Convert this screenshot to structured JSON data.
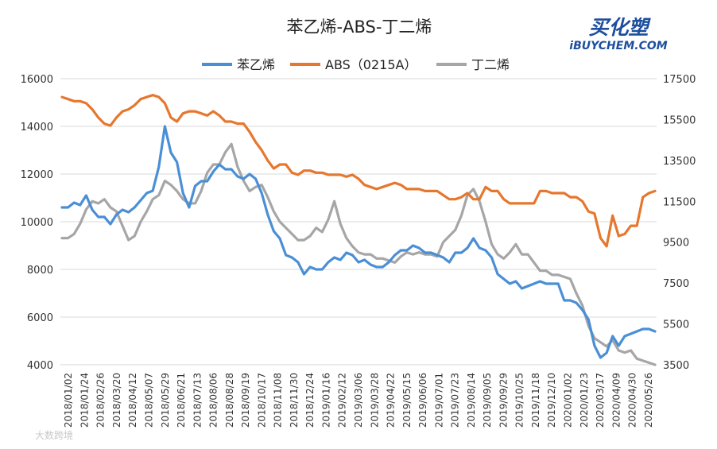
{
  "logo": {
    "main": "买化塑",
    "sub": "iBUYCHEM.COM"
  },
  "watermark": "大数跨境",
  "colors": {
    "styrene": "#4a8fd6",
    "abs": "#e6772e",
    "butadiene": "#a6a6a6"
  },
  "chart_data": {
    "type": "line",
    "title": "苯乙烯-ABS-丁二烯",
    "y_left": {
      "min": 4000,
      "max": 16000,
      "ticks": [
        4000,
        6000,
        8000,
        10000,
        12000,
        14000,
        16000
      ]
    },
    "y_right": {
      "min": 3500,
      "max": 17500,
      "ticks": [
        3500,
        5500,
        7500,
        9500,
        11500,
        13500,
        15500,
        17500
      ]
    },
    "x_ticks": [
      "2018/01/02",
      "2018/01/24",
      "2018/02/26",
      "2018/03/20",
      "2018/04/12",
      "2018/05/07",
      "2018/05/29",
      "2018/06/21",
      "2018/07/13",
      "2018/08/06",
      "2018/08/28",
      "2018/09/19",
      "2018/10/17",
      "2018/11/08",
      "2018/11/30",
      "2018/12/24",
      "2019/01/16",
      "2019/02/12",
      "2019/03/06",
      "2019/03/28",
      "2019/04/22",
      "2019/05/15",
      "2019/06/06",
      "2019/07/01",
      "2019/07/23",
      "2019/08/14",
      "2019/09/05",
      "2019/09/29",
      "2019/10/25",
      "2019/11/18",
      "2019/12/10",
      "2020/01/02",
      "2020/01/23",
      "2020/03/17",
      "2020/04/09",
      "2020/04/30",
      "2020/05/26"
    ],
    "series": [
      {
        "name": "苯乙烯",
        "axis": "left",
        "color": "#4a8fd6",
        "values": [
          10600,
          10600,
          10800,
          10700,
          11100,
          10500,
          10200,
          10200,
          9900,
          10300,
          10500,
          10400,
          10600,
          10900,
          11200,
          11300,
          12300,
          14000,
          12900,
          12500,
          11200,
          10600,
          11500,
          11700,
          11700,
          12100,
          12400,
          12200,
          12200,
          11900,
          11800,
          12000,
          11800,
          11200,
          10300,
          9600,
          9300,
          8600,
          8500,
          8300,
          7800,
          8100,
          8000,
          8000,
          8300,
          8500,
          8400,
          8700,
          8600,
          8300,
          8400,
          8200,
          8100,
          8100,
          8300,
          8600,
          8800,
          8800,
          9000,
          8900,
          8700,
          8700,
          8600,
          8500,
          8300,
          8700,
          8700,
          8900,
          9300,
          8900,
          8800,
          8500,
          7800,
          7600,
          7400,
          7500,
          7200,
          7300,
          7400,
          7500,
          7400,
          7400,
          7400,
          6700,
          6700,
          6600,
          6300,
          5900,
          4800,
          4300,
          4500,
          5200,
          4800,
          5200,
          5300,
          5400,
          5500,
          5500,
          5400
        ]
      },
      {
        "name": "ABS（0215A）",
        "axis": "right",
        "color": "#e6772e",
        "values": [
          16600,
          16500,
          16400,
          16400,
          16300,
          16000,
          15600,
          15300,
          15200,
          15600,
          15900,
          16000,
          16200,
          16500,
          16600,
          16700,
          16600,
          16300,
          15600,
          15400,
          15800,
          15900,
          15900,
          15800,
          15700,
          15900,
          15700,
          15400,
          15400,
          15300,
          15300,
          14900,
          14400,
          14000,
          13500,
          13100,
          13300,
          13300,
          12900,
          12800,
          13000,
          13000,
          12900,
          12900,
          12800,
          12800,
          12800,
          12700,
          12800,
          12600,
          12300,
          12200,
          12100,
          12200,
          12300,
          12400,
          12300,
          12100,
          12100,
          12100,
          12000,
          12000,
          12000,
          11800,
          11600,
          11600,
          11700,
          11900,
          11600,
          11600,
          12200,
          12000,
          12000,
          11600,
          11400,
          11400,
          11400,
          11400,
          11400,
          12000,
          12000,
          11900,
          11900,
          11900,
          11700,
          11700,
          11500,
          11000,
          10900,
          9700,
          9300,
          10800,
          9800,
          9900,
          10300,
          10300,
          11700,
          11900,
          12000
        ]
      },
      {
        "name": "丁二烯",
        "axis": "right",
        "color": "#a6a6a6",
        "values": [
          9700,
          9700,
          9900,
          10400,
          11100,
          11500,
          11400,
          11600,
          11200,
          11000,
          10300,
          9600,
          9800,
          10500,
          11000,
          11600,
          11800,
          12500,
          12300,
          12000,
          11600,
          11400,
          11400,
          12000,
          12900,
          13300,
          13300,
          13900,
          14300,
          13200,
          12500,
          12000,
          12200,
          12300,
          11700,
          11000,
          10500,
          10200,
          9900,
          9600,
          9600,
          9800,
          10200,
          10000,
          10600,
          11500,
          10400,
          9700,
          9300,
          9000,
          8900,
          8900,
          8700,
          8700,
          8600,
          8500,
          8800,
          9000,
          8900,
          9000,
          8900,
          8900,
          8800,
          9500,
          9800,
          10100,
          10800,
          11800,
          12100,
          11500,
          10500,
          9400,
          8900,
          8700,
          9000,
          9400,
          8900,
          8900,
          8500,
          8100,
          8100,
          7900,
          7900,
          7800,
          7700,
          7000,
          6400,
          5400,
          4800,
          4600,
          4400,
          4700,
          4200,
          4100,
          4200,
          3800,
          3700,
          3600,
          3500
        ]
      }
    ]
  }
}
